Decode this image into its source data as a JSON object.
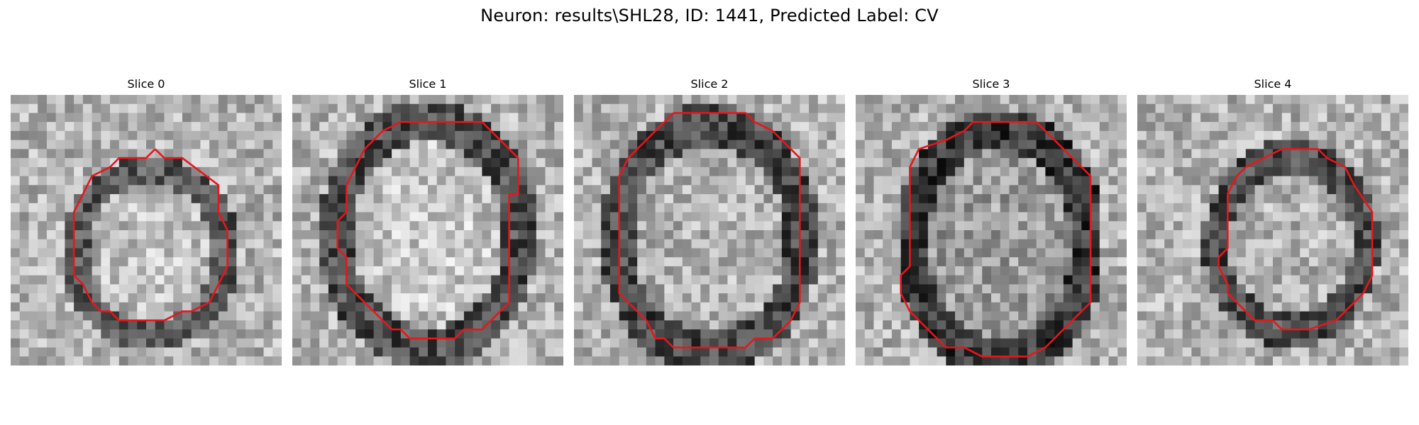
{
  "figure": {
    "title": "Neuron: results\\SHL28, ID: 1441, Predicted Label: CV"
  },
  "colors": {
    "contour": "#e8161b",
    "background": "#ffffff"
  },
  "panels": [
    {
      "title": "Slice 0"
    },
    {
      "title": "Slice 1"
    },
    {
      "title": "Slice 2"
    },
    {
      "title": "Slice 3"
    },
    {
      "title": "Slice 4"
    }
  ]
}
